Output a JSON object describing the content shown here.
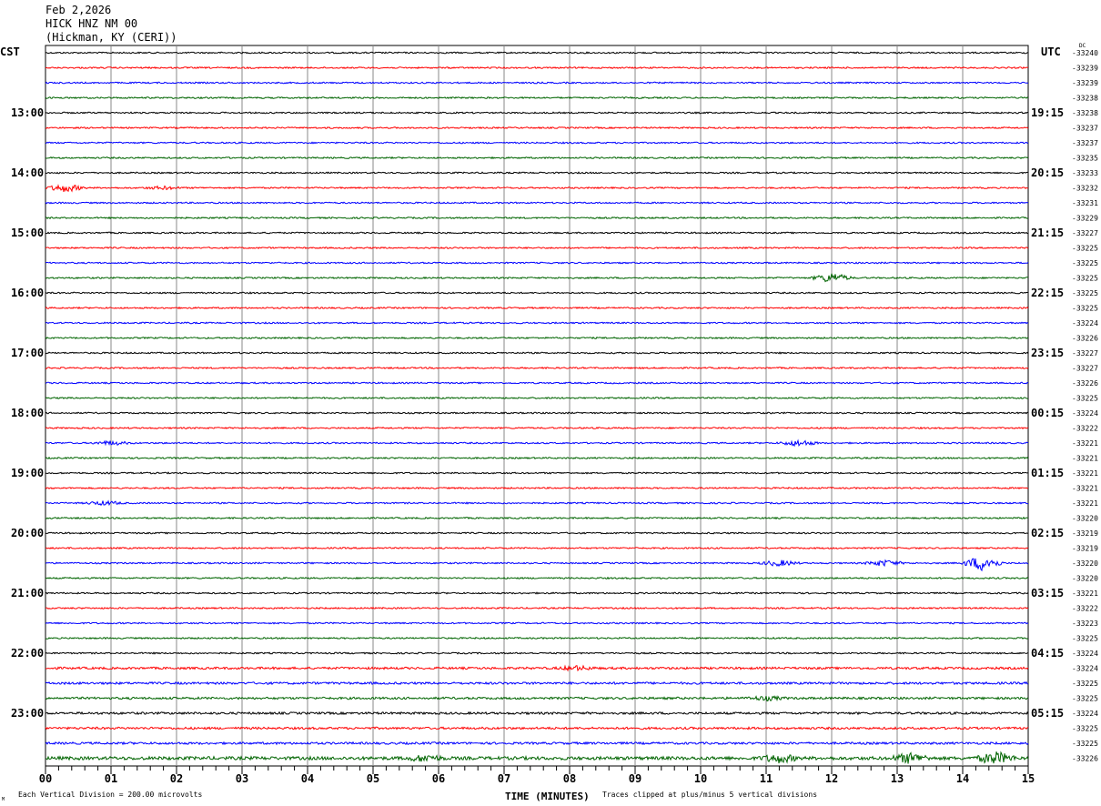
{
  "header": {
    "date": "Feb 2,2026",
    "station": "HICK HNZ NM 00",
    "location": "(Hickman, KY (CERI))"
  },
  "chart_data": {
    "type": "line",
    "title": "Feb 2,2026 HICK HNZ NM 00 (Hickman, KY (CERI))",
    "left_timezone": "CST",
    "right_timezone": "UTC",
    "dc_label": "DC",
    "xlabel": "TIME (MINUTES)",
    "xlim": [
      0,
      15
    ],
    "x_ticks": [
      "00",
      "01",
      "02",
      "03",
      "04",
      "05",
      "06",
      "07",
      "08",
      "09",
      "10",
      "11",
      "12",
      "13",
      "14",
      "15"
    ],
    "grid": true,
    "trace_colors": [
      "#000000",
      "#ff0000",
      "#0000ff",
      "#006400"
    ],
    "minutes_per_trace": 15,
    "traces_count": 48,
    "left_hour_labels": [
      "13:00",
      "14:00",
      "15:00",
      "16:00",
      "17:00",
      "18:00",
      "19:00",
      "20:00",
      "21:00",
      "22:00",
      "23:00"
    ],
    "right_hour_labels": [
      "19:15",
      "20:15",
      "21:15",
      "22:15",
      "23:15",
      "00:15",
      "01:15",
      "02:15",
      "03:15",
      "04:15",
      "05:15"
    ],
    "dc_offsets": [
      -33240,
      -33239,
      -33239,
      -33238,
      -33238,
      -33237,
      -33237,
      -33235,
      -33233,
      -33232,
      -33231,
      -33229,
      -33227,
      -33225,
      -33225,
      -33225,
      -33225,
      -33225,
      -33224,
      -33226,
      -33227,
      -33227,
      -33226,
      -33225,
      -33224,
      -33222,
      -33221,
      -33221,
      -33221,
      -33221,
      -33221,
      -33220,
      -33219,
      -33219,
      -33220,
      -33220,
      -33221,
      -33222,
      -33223,
      -33225,
      -33224,
      -33224,
      -33225,
      -33225,
      -33224,
      -33225,
      -33225,
      -33226
    ]
  },
  "footer": {
    "scale": "Each Vertical Division =  200.00 microvolts",
    "clip_note": "Traces clipped at plus/minus 5 vertical divisions",
    "corner_mark": "M"
  }
}
